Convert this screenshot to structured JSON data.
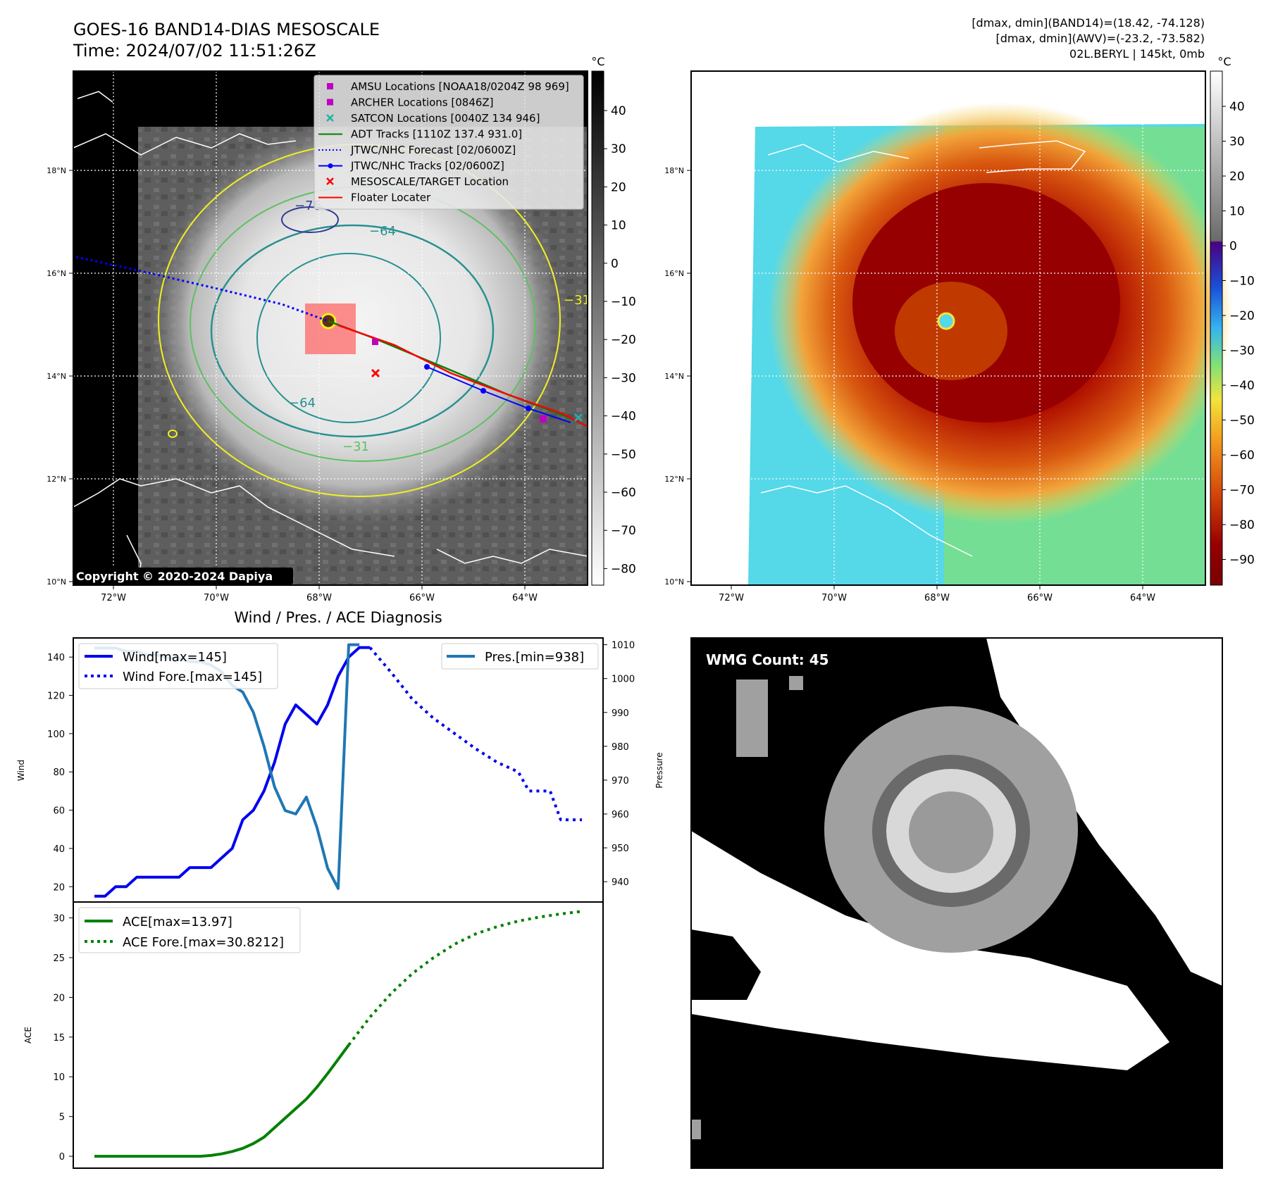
{
  "header": {
    "title_line1": "GOES-16 BAND14-DIAS MESOSCALE",
    "title_line2": "Time: 2024/07/02 11:51:26Z",
    "info_line1": "[dmax, dmin](BAND14)=(18.42, -74.128)",
    "info_line2": "[dmax, dmin](AWV)=(-23.2, -73.582)",
    "info_line3": "02L.BERYL | 145kt, 0mb"
  },
  "colors": {
    "wind": "#0000ee",
    "pressure": "#1f77b4",
    "ace": "#008000",
    "adt": "#008000",
    "forecast": "#0000ff",
    "marker_red": "#ff0000",
    "marker_magenta": "#c000c0",
    "marker_cyan": "#20b2aa"
  },
  "map_panel": {
    "unit": "°C",
    "copyright": "Copyright © 2020-2024 Dapiya",
    "colorbar_ticks": [
      "40",
      "30",
      "20",
      "10",
      "0",
      "−10",
      "−20",
      "−30",
      "−40",
      "−50",
      "−60",
      "−70",
      "−80"
    ],
    "lon_ticks": [
      "72°W",
      "70°W",
      "68°W",
      "66°W",
      "64°W"
    ],
    "lat_ticks": [
      "18°N",
      "16°N",
      "14°N",
      "12°N",
      "10°N"
    ],
    "contour_labels": [
      "−76",
      "−64",
      "−64",
      "−31",
      "−31"
    ],
    "legend": [
      {
        "label": "AMSU Locations [NOAA18/0204Z 98 969]",
        "marker": "square",
        "color": "#c000c0"
      },
      {
        "label": "ARCHER Locations [0846Z]",
        "marker": "square",
        "color": "#c000c0"
      },
      {
        "label": "SATCON Locations [0040Z 134 946]",
        "marker": "x",
        "color": "#20b2aa"
      },
      {
        "label": "ADT Tracks [1110Z 137.4 931.0]",
        "marker": "line",
        "color": "#008000"
      },
      {
        "label": "JTWC/NHC Forecast [02/0600Z]",
        "marker": "dotted",
        "color": "#0000ff"
      },
      {
        "label": "JTWC/NHC Tracks [02/0600Z]",
        "marker": "line-dot",
        "color": "#0000ff"
      },
      {
        "label": "MESOSCALE/TARGET Location",
        "marker": "x",
        "color": "#ff0000"
      },
      {
        "label": "Floater Locater",
        "marker": "line",
        "color": "#ff0000"
      }
    ]
  },
  "awv_panel": {
    "unit": "°C",
    "colorbar_ticks": [
      "40",
      "30",
      "20",
      "10",
      "0",
      "−10",
      "−20",
      "−30",
      "−40",
      "−50",
      "−60",
      "−70",
      "−80",
      "−90"
    ],
    "lon_ticks": [
      "72°W",
      "70°W",
      "68°W",
      "66°W",
      "64°W"
    ],
    "lat_ticks": [
      "18°N",
      "16°N",
      "14°N",
      "12°N",
      "10°N"
    ]
  },
  "wmg_panel": {
    "label": "WMG Count: 45"
  },
  "chart_data": [
    {
      "type": "line",
      "title": "Wind / Pres. / ACE Diagnosis",
      "ylabel": "Wind",
      "ylabel_right": "Pressure",
      "ylim": [
        12,
        150
      ],
      "ylim_right": [
        934,
        1012
      ],
      "yticks": [
        20,
        40,
        60,
        80,
        100,
        120,
        140
      ],
      "yticks_right": [
        940,
        950,
        960,
        970,
        980,
        990,
        1000,
        1010
      ],
      "x_range": [
        0,
        46
      ],
      "series": [
        {
          "name": "Wind[max=145]",
          "axis": "left",
          "style": "solid",
          "x": [
            0,
            1,
            2,
            3,
            4,
            5,
            6,
            7,
            8,
            9,
            10,
            11,
            12,
            13,
            14,
            15,
            16,
            17,
            18,
            19,
            20,
            21,
            22,
            23,
            24,
            25,
            26
          ],
          "values": [
            15,
            15,
            20,
            20,
            25,
            25,
            25,
            25,
            25,
            30,
            30,
            30,
            35,
            40,
            55,
            60,
            70,
            85,
            105,
            115,
            110,
            105,
            115,
            130,
            140,
            145,
            145
          ]
        },
        {
          "name": "Wind Fore.[max=145]",
          "axis": "left",
          "style": "dotted",
          "x": [
            26,
            28,
            30,
            32,
            34,
            36,
            38,
            40,
            41,
            42,
            43,
            44,
            46
          ],
          "values": [
            145,
            132,
            118,
            108,
            100,
            92,
            85,
            80,
            70,
            70,
            70,
            55,
            55
          ]
        },
        {
          "name": "Pres.[min=938]",
          "axis": "right",
          "style": "solid",
          "x": [
            0,
            1,
            2,
            3,
            4,
            5,
            6,
            7,
            8,
            9,
            10,
            11,
            12,
            13,
            14,
            15,
            16,
            17,
            18,
            19,
            20,
            21,
            22,
            23,
            24,
            25
          ],
          "values": [
            1009,
            1009,
            1009,
            1008,
            1008,
            1007,
            1007,
            1006,
            1006,
            1005,
            1005,
            1004,
            1002,
            998,
            996,
            990,
            980,
            968,
            961,
            960,
            965,
            956,
            944,
            938,
            1010,
            1010
          ]
        }
      ]
    },
    {
      "type": "line",
      "ylabel": "ACE",
      "ylim": [
        -1.5,
        32
      ],
      "yticks": [
        0,
        5,
        10,
        15,
        20,
        25,
        30
      ],
      "x_range": [
        0,
        46
      ],
      "series": [
        {
          "name": "ACE[max=13.97]",
          "style": "solid",
          "x": [
            0,
            2,
            4,
            6,
            8,
            10,
            11,
            12,
            13,
            14,
            15,
            16,
            17,
            18,
            19,
            20,
            21,
            22,
            23,
            24
          ],
          "values": [
            0,
            0,
            0,
            0,
            0,
            0,
            0.1,
            0.3,
            0.6,
            1.0,
            1.6,
            2.4,
            3.6,
            4.8,
            6.0,
            7.2,
            8.7,
            10.4,
            12.2,
            14.0
          ]
        },
        {
          "name": "ACE Fore.[max=30.8212]",
          "style": "dotted",
          "x": [
            24,
            26,
            28,
            30,
            32,
            34,
            36,
            38,
            40,
            42,
            44,
            46
          ],
          "values": [
            14.0,
            17.5,
            20.5,
            23.0,
            25.0,
            26.7,
            28.0,
            28.9,
            29.6,
            30.1,
            30.5,
            30.82
          ]
        }
      ]
    }
  ]
}
